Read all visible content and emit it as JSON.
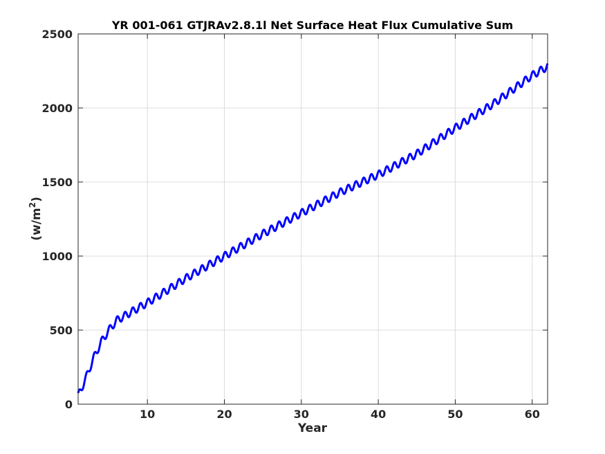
{
  "chart_data": {
    "type": "line",
    "title": "YR 001-061 GTJRAv2.8.1l Net Surface Heat Flux  Cumulative Sum",
    "xlabel": "Year",
    "ylabel": "(w/m²)",
    "ylabel_base": "(w/m",
    "ylabel_sup": "2",
    "ylabel_tail": ")",
    "xlim": [
      1,
      62
    ],
    "ylim": [
      0,
      2500
    ],
    "xticks": [
      10,
      20,
      30,
      40,
      50,
      60
    ],
    "yticks": [
      0,
      500,
      1000,
      1500,
      2000,
      2500
    ],
    "grid": true,
    "series": [
      {
        "color": "#0000ff",
        "seasonal_cycle": "annual oscillation of about ±25 w/m² around the trend",
        "trend_x": [
          1,
          2,
          3,
          4,
          5,
          6,
          8,
          10,
          12,
          15,
          20,
          25,
          30,
          35,
          40,
          45,
          50,
          55,
          60,
          62
        ],
        "trend_y": [
          55,
          175,
          310,
          420,
          500,
          565,
          625,
          685,
          750,
          850,
          1000,
          1150,
          1290,
          1430,
          1550,
          1690,
          1865,
          2030,
          2220,
          2280
        ]
      }
    ]
  }
}
